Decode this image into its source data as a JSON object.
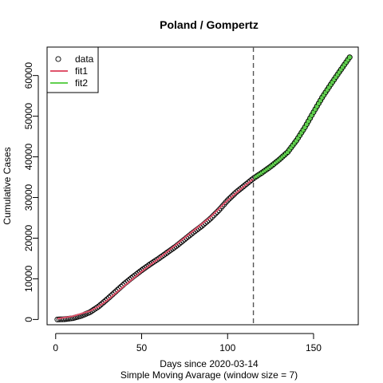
{
  "chart_data": {
    "type": "line",
    "title": "Poland / Gompertz",
    "xlabel": "Days since 2020-03-14",
    "xlabel_sub": "Simple Moving Avarage (window size = 7)",
    "ylabel": "Cumulative Cases",
    "xlim": [
      -5,
      176
    ],
    "ylim": [
      -1300,
      67000
    ],
    "x_ticks": [
      0,
      50,
      100,
      150
    ],
    "y_ticks": [
      0,
      10000,
      20000,
      30000,
      40000,
      50000,
      60000
    ],
    "grid": false,
    "legend": {
      "position": "top-left",
      "entries": [
        {
          "label": "data",
          "marker": "open-circle",
          "color": "#000000"
        },
        {
          "label": "fit1",
          "marker": "line",
          "color": "#DF536B"
        },
        {
          "label": "fit2",
          "marker": "line",
          "color": "#61D04F"
        }
      ]
    },
    "breakpoint_x": 115,
    "breakpoint_style": "dashed",
    "data_knots": {
      "x": [
        1,
        5,
        10,
        15,
        20,
        25,
        30,
        35,
        40,
        45,
        50,
        55,
        60,
        65,
        70,
        75,
        80,
        85,
        90,
        95,
        100,
        105,
        110,
        115,
        120,
        125,
        130,
        135,
        140,
        145,
        150,
        155,
        160,
        165,
        171
      ],
      "y": [
        0,
        60,
        320,
        900,
        1800,
        3200,
        5000,
        6900,
        8800,
        10500,
        12100,
        13600,
        15000,
        16500,
        18000,
        19700,
        21400,
        23000,
        24800,
        26900,
        29300,
        31300,
        33000,
        34700,
        36100,
        37600,
        39300,
        41200,
        44000,
        47300,
        51000,
        54600,
        57800,
        60900,
        64500
      ]
    },
    "series": [
      {
        "name": "data",
        "style": "points",
        "color": "#000000",
        "fill_after_breakpoint": "#61D04F"
      },
      {
        "name": "fit1",
        "style": "line",
        "color": "#DF536B",
        "x": [
          1,
          10,
          20,
          25,
          30,
          40,
          50,
          60,
          70,
          80,
          90,
          100,
          110,
          115
        ],
        "y": [
          200,
          800,
          2100,
          3200,
          4700,
          8300,
          11800,
          15000,
          18400,
          21800,
          25200,
          29300,
          32900,
          34600
        ]
      },
      {
        "name": "fit2",
        "style": "line",
        "color": "#61D04F",
        "x": [
          115,
          120,
          125,
          130,
          135,
          140,
          145,
          150,
          155,
          160,
          165,
          171
        ],
        "y": [
          34800,
          36100,
          37600,
          39300,
          41200,
          44000,
          47300,
          51000,
          54600,
          57800,
          60900,
          64500
        ]
      }
    ]
  }
}
